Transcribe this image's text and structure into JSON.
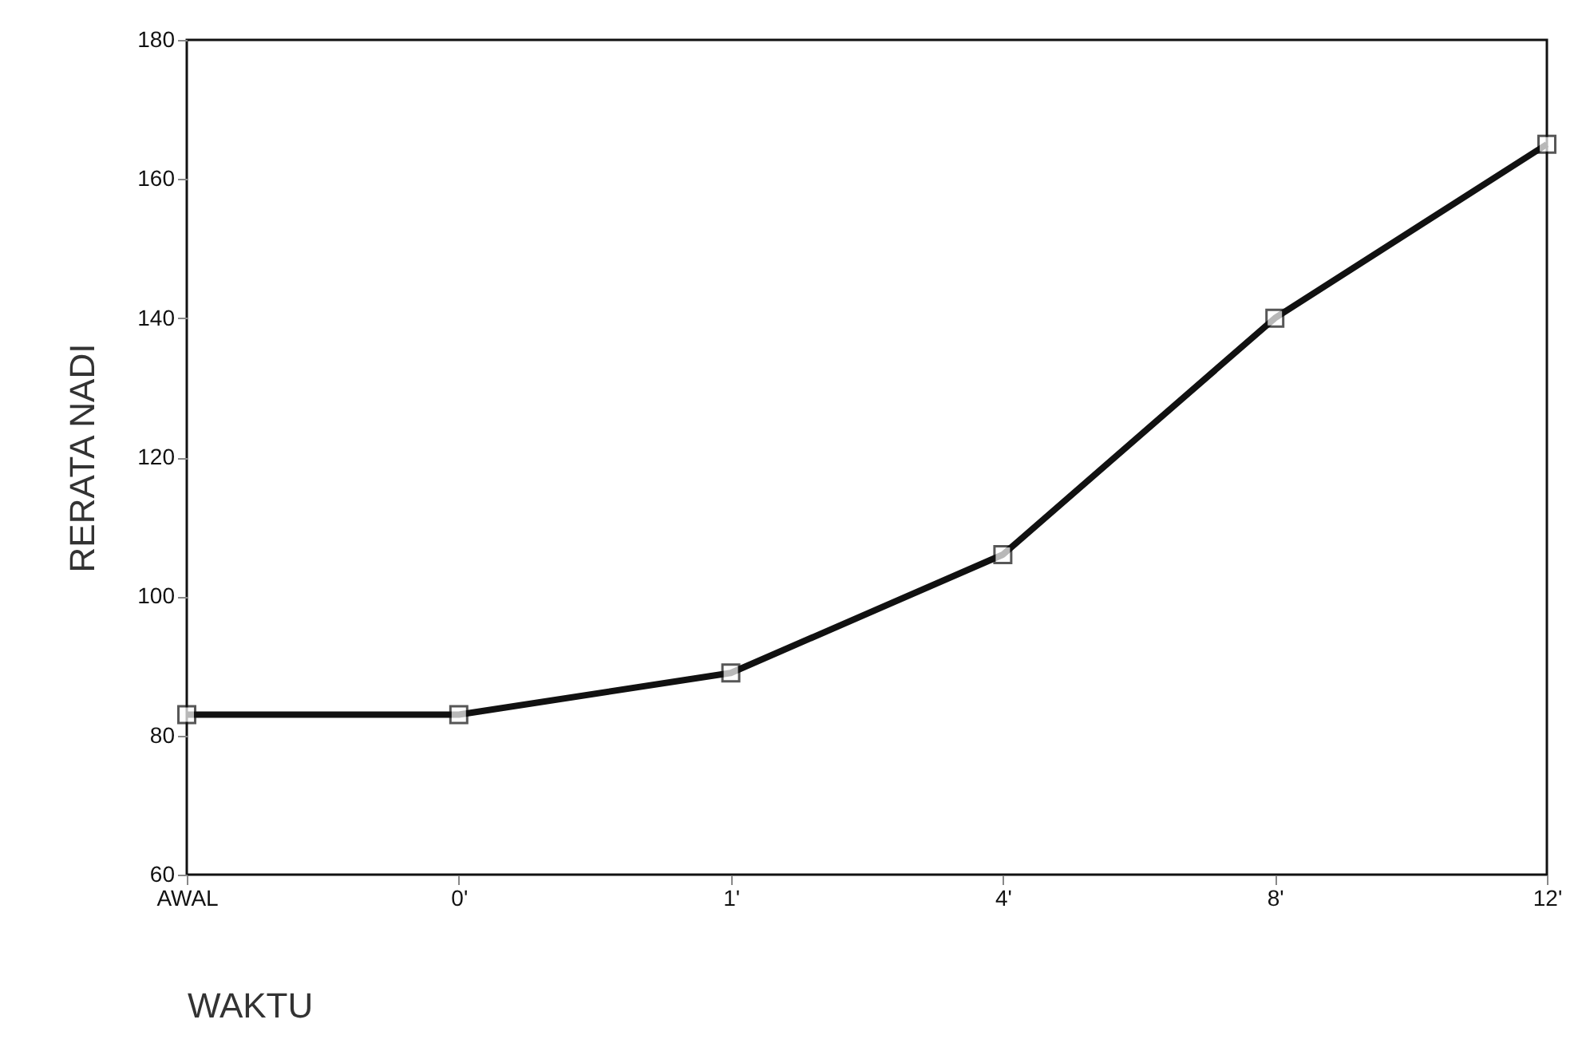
{
  "chart_data": {
    "type": "line",
    "xlabel": "WAKTU",
    "ylabel": "RERATA NADI",
    "categories": [
      "AWAL",
      "0'",
      "1'",
      "4'",
      "8'",
      "12'"
    ],
    "series": [
      {
        "color": "#111111",
        "values": [
          83,
          83,
          89,
          106,
          140,
          165
        ]
      }
    ],
    "ylim": [
      60,
      180
    ],
    "yticks": [
      60,
      80,
      100,
      120,
      140,
      160,
      180
    ],
    "grid": false,
    "marker": "square",
    "line_style": "solid"
  }
}
